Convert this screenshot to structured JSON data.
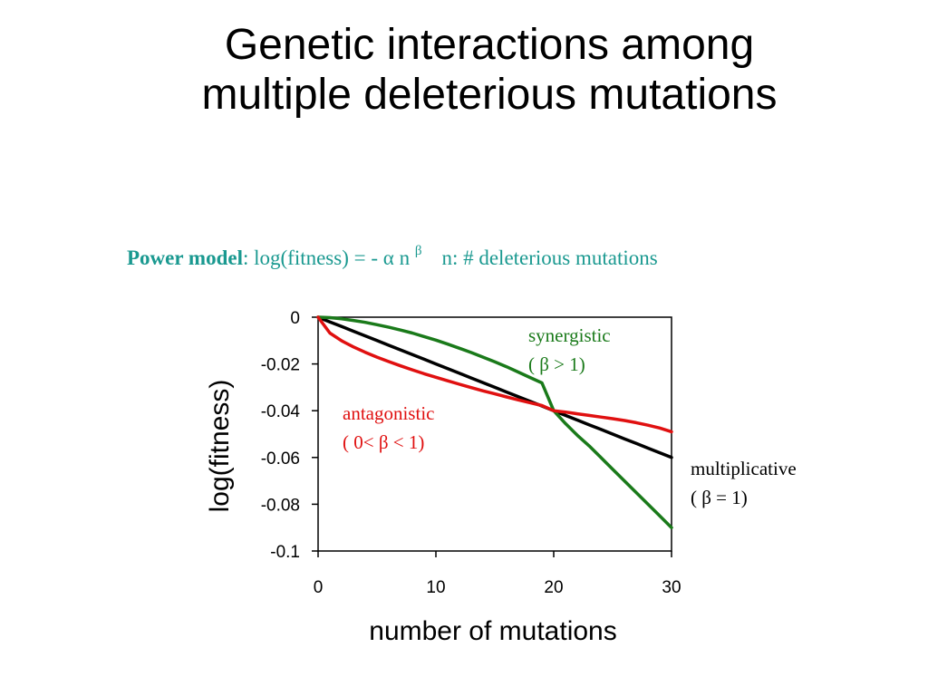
{
  "slide": {
    "title_line1": "Genetic interactions among",
    "title_line2": "multiple deleterious mutations"
  },
  "formula": {
    "bold_label": "Power model",
    "colon": ":",
    "expression": " log(fitness) = - ",
    "alpha": "α",
    "n": " n ",
    "beta": "β",
    "definition": "n: # deleterious mutations",
    "color": "#1a9990"
  },
  "annotations": {
    "synergistic": {
      "line1": "synergistic",
      "line2": "( β > 1)",
      "color": "#1a7a1a"
    },
    "antagonistic": {
      "line1": "antagonistic",
      "line2": "( 0< β < 1)",
      "color": "#e01010"
    },
    "multiplicative": {
      "line1": "multiplicative",
      "line2": "( β = 1)",
      "color": "#000000"
    }
  },
  "chart_data": {
    "type": "line",
    "xlabel": "number of mutations",
    "ylabel": "log(fitness)",
    "xlim": [
      0,
      30
    ],
    "ylim": [
      -0.1,
      0
    ],
    "x_ticks": [
      0,
      10,
      20,
      30
    ],
    "x_tick_labels": [
      "0",
      "10",
      "20",
      "30"
    ],
    "y_ticks": [
      0,
      -0.02,
      -0.04,
      -0.06,
      -0.08,
      -0.1
    ],
    "y_tick_labels": [
      "0",
      "-0.02",
      "-0.04",
      "-0.06",
      "-0.08",
      "-0.1"
    ],
    "grid": false,
    "x": [
      0,
      1,
      2,
      3,
      4,
      5,
      6,
      7,
      8,
      9,
      10,
      11,
      12,
      13,
      14,
      15,
      16,
      17,
      18,
      19,
      20,
      21,
      22,
      23,
      24,
      25,
      26,
      27,
      28,
      29,
      30
    ],
    "series": [
      {
        "name": "multiplicative",
        "color": "#000000",
        "values": [
          0,
          -0.002,
          -0.004,
          -0.006,
          -0.008,
          -0.01,
          -0.012,
          -0.014,
          -0.016,
          -0.018,
          -0.02,
          -0.022,
          -0.024,
          -0.026,
          -0.028,
          -0.03,
          -0.032,
          -0.034,
          -0.036,
          -0.038,
          -0.04,
          -0.042,
          -0.044,
          -0.046,
          -0.048,
          -0.05,
          -0.052,
          -0.054,
          -0.056,
          -0.058,
          -0.06
        ]
      },
      {
        "name": "synergistic",
        "color": "#1a7a1a",
        "values": [
          0,
          -0.0002,
          -0.0007,
          -0.0014,
          -0.0022,
          -0.0032,
          -0.0043,
          -0.0055,
          -0.0068,
          -0.0083,
          -0.0098,
          -0.0115,
          -0.0133,
          -0.0151,
          -0.0171,
          -0.0191,
          -0.0212,
          -0.0235,
          -0.0258,
          -0.0281,
          -0.04,
          -0.0455,
          -0.0505,
          -0.055,
          -0.06,
          -0.065,
          -0.07,
          -0.075,
          -0.08,
          -0.085,
          -0.09
        ]
      },
      {
        "name": "antagonistic",
        "color": "#e01010",
        "values": [
          0,
          -0.0068,
          -0.0101,
          -0.0127,
          -0.015,
          -0.0171,
          -0.019,
          -0.0208,
          -0.0225,
          -0.0242,
          -0.0257,
          -0.0272,
          -0.0287,
          -0.0301,
          -0.0315,
          -0.0328,
          -0.0341,
          -0.0354,
          -0.0366,
          -0.0378,
          -0.04,
          -0.0406,
          -0.0413,
          -0.042,
          -0.0427,
          -0.0434,
          -0.0442,
          -0.0451,
          -0.0462,
          -0.0474,
          -0.049
        ]
      }
    ]
  }
}
